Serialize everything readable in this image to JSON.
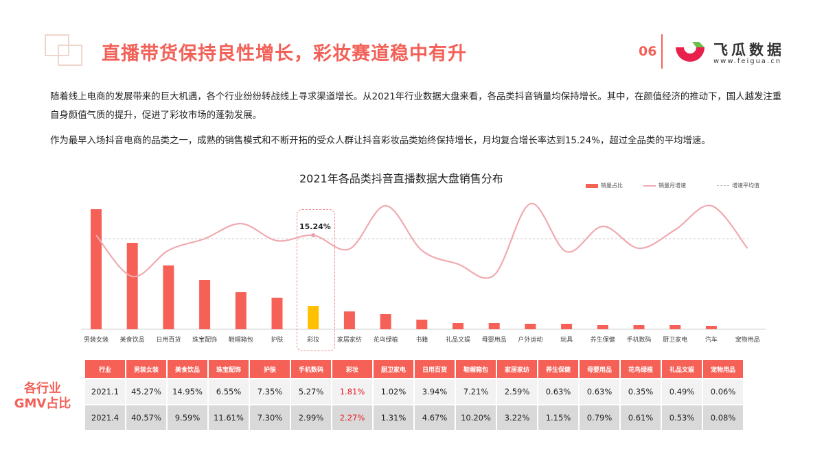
{
  "header": {
    "title": "直播带货保持良性增长，彩妆赛道稳中有升",
    "page_number": "06",
    "brand": {
      "name": "飞瓜数据",
      "url": "www.feigua.cn",
      "logo_colors": {
        "primary": "#e8204c",
        "accent": "#6cc04a"
      }
    }
  },
  "body": {
    "paragraph1": "随着线上电商的发展带来的巨大机遇，各个行业纷纷转战线上寻求渠道增长。从2021年行业数据大盘来看，各品类抖音销量均保持增长。其中，在颜值经济的推动下，国人越发注重自身颜值气质的提升，促进了彩妆市场的蓬勃发展。",
    "paragraph2": "作为最早入场抖音电商的品类之一，成熟的销售模式和不断开拓的受众人群让抖音彩妆品类始终保持增长，月均复合增长率达到15.24%，超过全品类的平均增速。"
  },
  "chart_data": {
    "type": "bar",
    "title": "2021年各品类抖音直播数据大盘销售分布",
    "legend": [
      "销量占比",
      "销量月增速",
      "增速平均值"
    ],
    "legend_position": "top-right",
    "categories": [
      "男装女装",
      "美食饮品",
      "日用百货",
      "珠宝配饰",
      "鞋帽箱包",
      "护肤",
      "彩妆",
      "家居家纺",
      "花鸟绿植",
      "书籍",
      "礼品文娱",
      "母婴用品",
      "户外运动",
      "玩具",
      "养生保健",
      "手机数码",
      "厨卫家电",
      "汽车",
      "宠物用品"
    ],
    "series": [
      {
        "name": "销量占比",
        "type": "bar",
        "values": [
          175,
          126,
          93,
          72,
          54,
          46,
          34,
          26,
          22,
          14,
          9,
          9,
          8,
          8,
          6,
          6,
          6,
          5,
          0
        ],
        "unit": "relative bar height (px)"
      },
      {
        "name": "销量月增速",
        "type": "line",
        "values": [
          343,
          403,
          365,
          348,
          326,
          351,
          343,
          363,
          300,
          365,
          385,
          401,
          297,
          367,
          330,
          362,
          335,
          300,
          362
        ],
        "unit": "svg y coordinate"
      },
      {
        "name": "增速平均值",
        "type": "line",
        "value_y": 348
      }
    ],
    "highlight": {
      "category": "彩妆",
      "label": "15.24%",
      "color": "#ffc000"
    },
    "colors": {
      "bar": "#f56157",
      "line": "#efaab0",
      "avg": "#bbbbbb"
    },
    "grid": false,
    "xlabel": "",
    "ylabel": ""
  },
  "table": {
    "side_label_line1": "各行业",
    "side_label_line2": "GMV占比",
    "headers": [
      "行业",
      "男装女装",
      "美食饮品",
      "珠宝配饰",
      "护肤",
      "手机数码",
      "彩妆",
      "厨卫家电",
      "日用百货",
      "鞋帽箱包",
      "家居家纺",
      "养生保健",
      "母婴用品",
      "花鸟绿植",
      "礼品文娱",
      "宠物用品"
    ],
    "rows": [
      [
        "2021.1",
        "45.27%",
        "14.95%",
        "6.55%",
        "7.35%",
        "5.27%",
        "1.81%",
        "1.02%",
        "3.94%",
        "7.21%",
        "2.59%",
        "0.63%",
        "0.63%",
        "0.35%",
        "0.49%",
        "0.06%"
      ],
      [
        "2021.4",
        "40.57%",
        "9.59%",
        "11.61%",
        "7.30%",
        "2.99%",
        "2.27%",
        "1.31%",
        "4.67%",
        "10.20%",
        "3.22%",
        "1.15%",
        "0.79%",
        "0.61%",
        "0.53%",
        "0.08%"
      ]
    ],
    "highlight_column": 6
  }
}
